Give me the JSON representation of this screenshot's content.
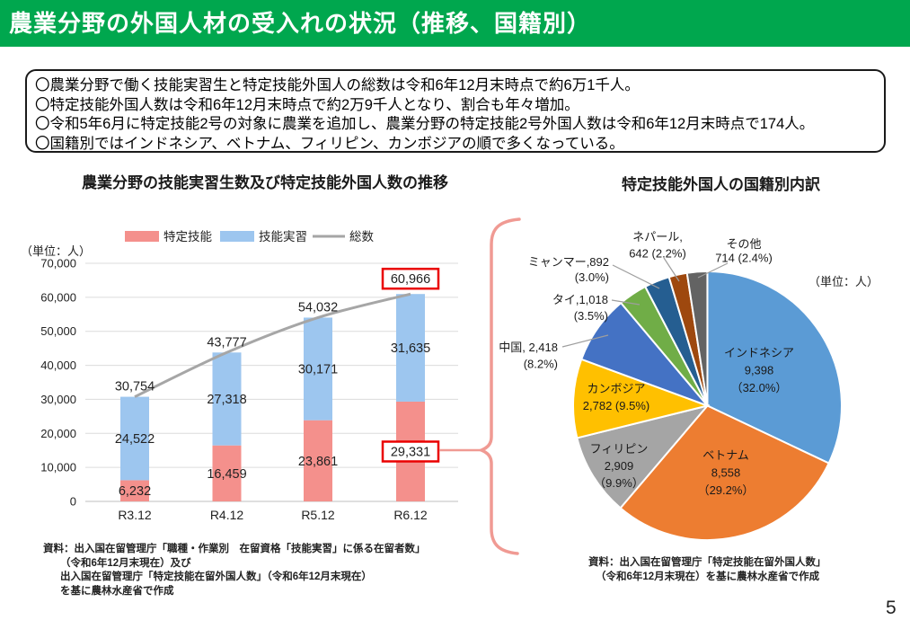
{
  "header": {
    "title": "農業分野の外国人材の受入れの状況（推移、国籍別）",
    "bar_color": "#00A74E"
  },
  "summary": {
    "lines": [
      "〇農業分野で働く技能実習生と特定技能外国人の総数は令和6年12月末時点で約6万1千人。",
      "〇特定技能外国人数は令和6年12月末時点で約2万9千人となり、割合も年々増加。",
      "〇令和5年6月に特定技能2号の対象に農業を追加し、農業分野の特定技能2号外国人数は令和6年12月末時点で174人。",
      "〇国籍別ではインドネシア、ベトナム、フィリピン、カンボジアの順で多くなっている。"
    ]
  },
  "chart_data": [
    {
      "type": "bar",
      "title": "農業分野の技能実習生数及び特定技能外国人数の推移",
      "unit_label": "（単位：人）",
      "categories": [
        "R3.12",
        "R4.12",
        "R5.12",
        "R6.12"
      ],
      "series": [
        {
          "name": "特定技能",
          "type": "bar",
          "color": "#F4908C",
          "values": [
            6232,
            16459,
            23861,
            29331
          ]
        },
        {
          "name": "技能実習",
          "type": "bar",
          "color": "#9DC6EF",
          "values": [
            24522,
            27318,
            30171,
            31635
          ]
        },
        {
          "name": "総数",
          "type": "line",
          "color": "#A6A6A6",
          "values": [
            30754,
            43777,
            54032,
            60966
          ]
        }
      ],
      "ylim": [
        0,
        70000
      ],
      "ytick_step": 10000,
      "grid": true,
      "legend_position": "top",
      "highlight": {
        "category": "R6.12",
        "series": [
          "特定技能",
          "総数"
        ],
        "box_color": "#EA0000"
      }
    },
    {
      "type": "pie",
      "title": "特定技能外国人の国籍別内訳",
      "unit_label": "（単位：人）",
      "slices": [
        {
          "label": "インドネシア",
          "value": 9398,
          "pct": "32.0%",
          "color": "#5B9BD5",
          "lines": [
            "インドネシア",
            "9,398",
            "（32.0%）"
          ]
        },
        {
          "label": "ベトナム",
          "value": 8558,
          "pct": "29.2%",
          "color": "#ED7D31",
          "lines": [
            "ベトナム",
            "8,558",
            "（29.2%）"
          ]
        },
        {
          "label": "フィリピン",
          "value": 2909,
          "pct": "9.9%",
          "color": "#A5A5A5",
          "lines": [
            "フィリピン",
            "2,909",
            "（9.9%）"
          ]
        },
        {
          "label": "カンボジア",
          "value": 2782,
          "pct": "9.5%",
          "color": "#FFC000",
          "lines": [
            "カンボジア",
            "2,782 (9.5%)"
          ]
        },
        {
          "label": "中国",
          "value": 2418,
          "pct": "8.2%",
          "color": "#4472C4",
          "lines": [
            "中国, 2,418",
            "(8.2%)"
          ]
        },
        {
          "label": "タイ",
          "value": 1018,
          "pct": "3.5%",
          "color": "#70AD47",
          "lines": [
            "タイ,1,018",
            "(3.5%)"
          ]
        },
        {
          "label": "ミャンマー",
          "value": 892,
          "pct": "3.0%",
          "color": "#255E91",
          "lines": [
            "ミャンマー,892",
            "(3.0%)"
          ]
        },
        {
          "label": "ネパール",
          "value": 642,
          "pct": "2.2%",
          "color": "#9E480E",
          "lines": [
            "ネパール,",
            "642 (2.2%)"
          ]
        },
        {
          "label": "その他",
          "value": 714,
          "pct": "2.4%",
          "color": "#636363",
          "lines": [
            "その他",
            "714 (2.4%)"
          ]
        }
      ]
    }
  ],
  "sources": {
    "left_lines": [
      "資料：出入国在留管理庁「職種・作業別　在留資格「技能実習」に係る在留者数」",
      "（令和6年12月末現在）及び",
      "出入国在留管理庁「特定技能在留外国人数」（令和6年12月末現在）",
      "を基に農林水産省で作成"
    ],
    "right_lines": [
      "資料：出入国在留管理庁「特定技能在留外国人数」",
      "（令和6年12月末現在）を基に農林水産省で作成"
    ]
  },
  "page_number": "5",
  "colors": {
    "highlight_box": "#EA0000",
    "brace": "#F09A93",
    "grid": "#DCDCDC",
    "axis_line": "#BFBFBF",
    "leader": "#9E9E9E",
    "label_text": "#222222"
  }
}
